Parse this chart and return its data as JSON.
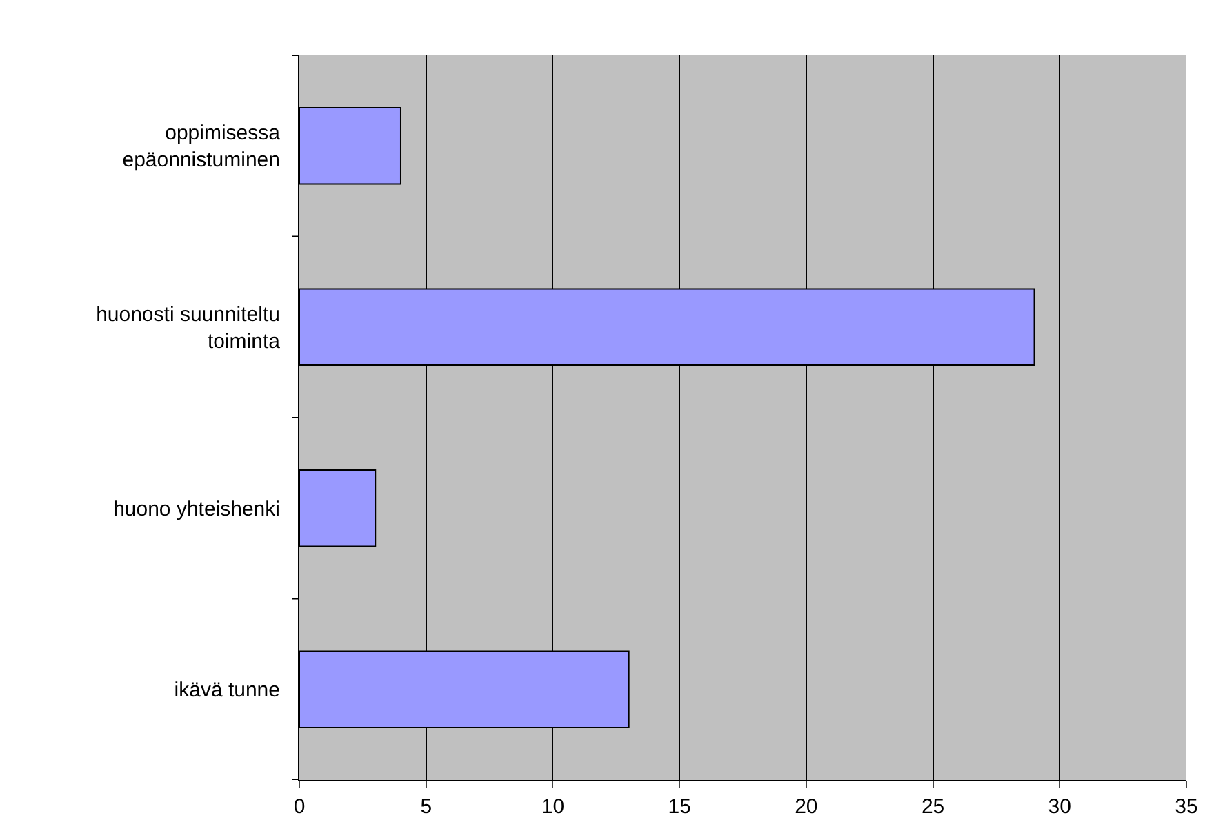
{
  "chart_data": {
    "type": "bar",
    "orientation": "horizontal",
    "categories": [
      "oppimisessa\nepäonnistuminen",
      "huonosti suunniteltu\ntoiminta",
      "huono yhteishenki",
      "ikävä tunne"
    ],
    "values": [
      4,
      29,
      3,
      13
    ],
    "color": "#9999ff",
    "xlim": [
      0,
      35
    ],
    "xticks": [
      0,
      5,
      10,
      15,
      20,
      25,
      30,
      35
    ],
    "grid": "x",
    "legend": false
  }
}
